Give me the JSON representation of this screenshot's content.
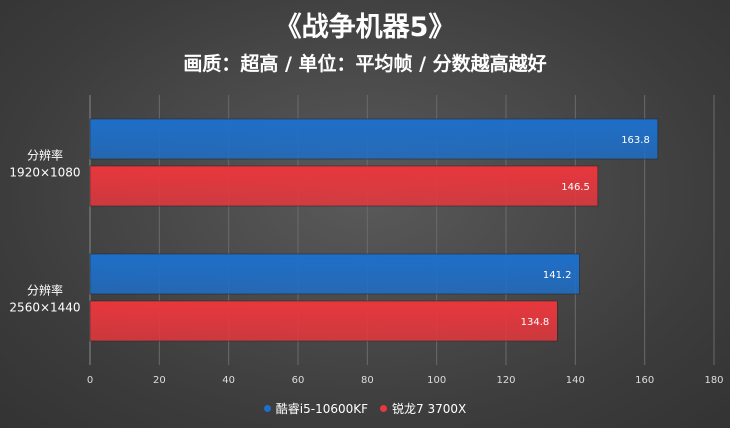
{
  "chart_data": {
    "type": "bar",
    "orientation": "horizontal",
    "title": "《战争机器5》",
    "subtitle": "画质：超高 / 单位：平均帧 / 分数越高越好",
    "categories": [
      {
        "line1": "分辨率",
        "line2": "1920×1080"
      },
      {
        "line1": "分辨率",
        "line2": "2560×1440"
      }
    ],
    "series": [
      {
        "name": "酷睿i5-10600KF",
        "color": "#1e6fc9",
        "values": [
          163.8,
          141.2
        ]
      },
      {
        "name": "锐龙7 3700X",
        "color": "#e8373d",
        "values": [
          146.5,
          134.8
        ]
      }
    ],
    "xlim": [
      0,
      180
    ],
    "xticks": [
      0,
      20,
      40,
      60,
      80,
      100,
      120,
      140,
      160,
      180
    ],
    "grid": true,
    "legend_position": "bottom"
  }
}
